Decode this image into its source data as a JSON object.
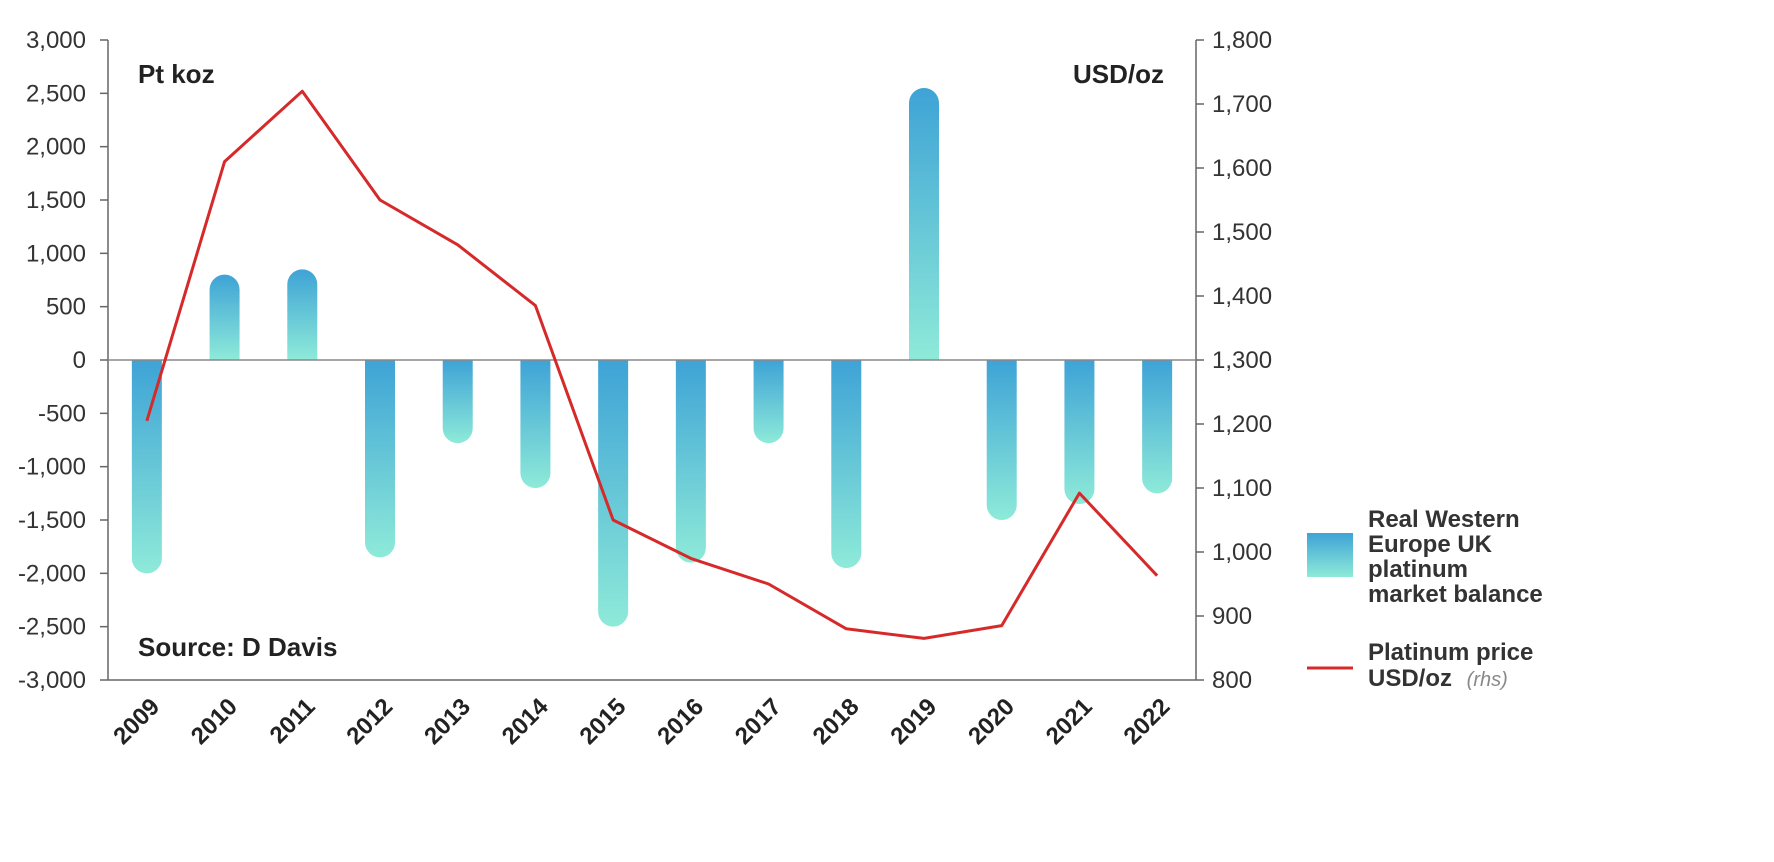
{
  "chart_data": {
    "type": "bar",
    "categories": [
      "2009",
      "2010",
      "2011",
      "2012",
      "2013",
      "2014",
      "2015",
      "2016",
      "2017",
      "2018",
      "2019",
      "2020",
      "2021",
      "2022"
    ],
    "series": [
      {
        "name": "Real Western Europe UK platinum market balance",
        "type": "bar",
        "axis": "left",
        "values": [
          -2000,
          800,
          850,
          -1850,
          -780,
          -1200,
          -2500,
          -1900,
          -780,
          -1950,
          2550,
          -1500,
          -1350,
          -1250
        ]
      },
      {
        "name": "Platinum price USD/oz",
        "type": "line",
        "axis": "right",
        "values": [
          1205,
          1610,
          1720,
          1550,
          1480,
          1385,
          1050,
          990,
          950,
          880,
          865,
          885,
          1092,
          963
        ]
      }
    ],
    "left_axis": {
      "label": "Pt koz",
      "ylim": [
        -3000,
        3000
      ],
      "ticks": [
        3000,
        2500,
        2000,
        1500,
        1000,
        500,
        0,
        -500,
        -1000,
        -1500,
        -2000,
        -2500,
        -3000
      ],
      "tick_labels": [
        "3,000",
        "2,500",
        "2,000",
        "1,500",
        "1,000",
        "500",
        "0",
        "-500",
        "-1,000",
        "-1,500",
        "-2,000",
        "-2,500",
        "-3,000"
      ]
    },
    "right_axis": {
      "label": "USD/oz",
      "ylim": [
        800,
        1800
      ],
      "ticks": [
        1800,
        1700,
        1600,
        1500,
        1400,
        1300,
        1200,
        1100,
        1000,
        900,
        800
      ],
      "tick_labels": [
        "1,800",
        "1,700",
        "1,600",
        "1,500",
        "1,400",
        "1,300",
        "1,200",
        "1,100",
        "1,000",
        "900",
        "800"
      ]
    },
    "source": "Source: D Davis",
    "legend": {
      "placement": "right",
      "bar_label_lines": [
        "Real Western",
        "Europe UK",
        "platinum",
        "market balance"
      ],
      "line_label_lines": [
        "Platinum price",
        "USD/oz"
      ],
      "line_label_note": "(rhs)"
    },
    "colors": {
      "bar_top": "#3ea3d6",
      "bar_bottom": "#8eead8",
      "line": "#d62a2a",
      "axis": "#555555"
    },
    "grid": false
  }
}
